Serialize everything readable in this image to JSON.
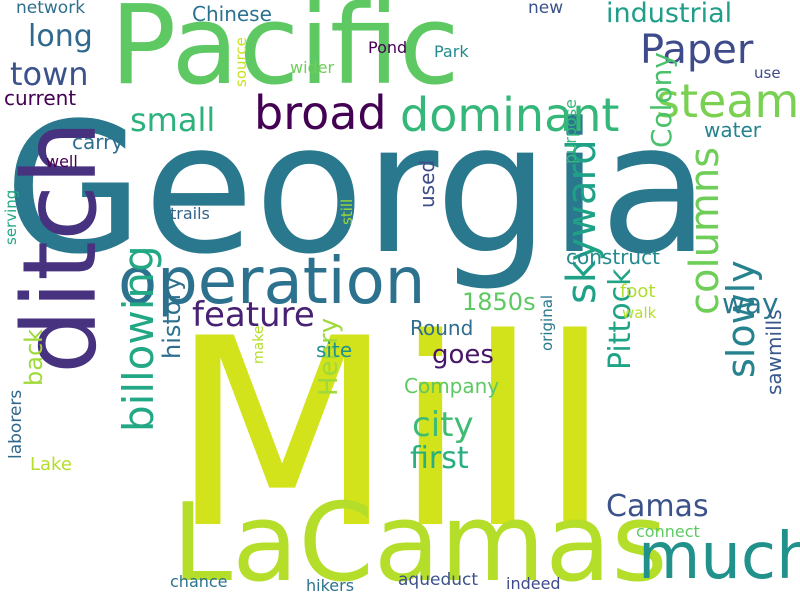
{
  "words": [
    {
      "text": "Georgia",
      "color": "#2a788e"
    },
    {
      "text": "Mill",
      "color": "#d2e21b"
    },
    {
      "text": "Pacific",
      "color": "#5ec962"
    },
    {
      "text": "ditch",
      "color": "#46327e"
    },
    {
      "text": "LaCamas",
      "color": "#b5de2b"
    },
    {
      "text": "operation",
      "color": "#2c728e"
    },
    {
      "text": "much",
      "color": "#21918c"
    },
    {
      "text": "broad",
      "color": "#440154"
    },
    {
      "text": "dominant",
      "color": "#35b779"
    },
    {
      "text": "steam",
      "color": "#7ad151"
    },
    {
      "text": "Paper",
      "color": "#3e4a89"
    },
    {
      "text": "billowing",
      "color": "#22a884"
    },
    {
      "text": "skyward",
      "color": "#1fa187"
    },
    {
      "text": "columns",
      "color": "#6ece58"
    },
    {
      "text": "slowly",
      "color": "#26828e"
    },
    {
      "text": "industrial",
      "color": "#1f9e89"
    },
    {
      "text": "town",
      "color": "#3b528b"
    },
    {
      "text": "long",
      "color": "#31688e"
    },
    {
      "text": "small",
      "color": "#2db27d"
    },
    {
      "text": "feature",
      "color": "#482173"
    },
    {
      "text": "city",
      "color": "#3fbc73"
    },
    {
      "text": "first",
      "color": "#29af7f"
    },
    {
      "text": "Camas",
      "color": "#3b528b"
    },
    {
      "text": "Pittock",
      "color": "#20a486"
    },
    {
      "text": "Henry",
      "color": "#9fda3a"
    },
    {
      "text": "history",
      "color": "#2e6f8e"
    },
    {
      "text": "Colony",
      "color": "#4ac16d"
    },
    {
      "text": "goes",
      "color": "#481668"
    },
    {
      "text": "way",
      "color": "#2a788e"
    },
    {
      "text": "sawmills",
      "color": "#38598c"
    },
    {
      "text": "1850s",
      "color": "#5ec962"
    },
    {
      "text": "back",
      "color": "#a0da39"
    },
    {
      "text": "construct",
      "color": "#23898e"
    },
    {
      "text": "current",
      "color": "#440154"
    },
    {
      "text": "Chinese",
      "color": "#2c728e"
    },
    {
      "text": "carry",
      "color": "#2e6e8e"
    },
    {
      "text": "used",
      "color": "#3e4c8a"
    },
    {
      "text": "water",
      "color": "#25838e"
    },
    {
      "text": "Company",
      "color": "#5ec962"
    },
    {
      "text": "Round",
      "color": "#2f6c8e"
    },
    {
      "text": "site",
      "color": "#21918c"
    },
    {
      "text": "Lake",
      "color": "#b5de2b"
    },
    {
      "text": "foot",
      "color": "#b0dd2f"
    },
    {
      "text": "laborers",
      "color": "#30678d"
    },
    {
      "text": "network",
      "color": "#2e6f8e"
    },
    {
      "text": "new",
      "color": "#3b528b"
    },
    {
      "text": "Pond",
      "color": "#440154"
    },
    {
      "text": "Park",
      "color": "#23898e"
    },
    {
      "text": "wider",
      "color": "#6ece58"
    },
    {
      "text": "use",
      "color": "#3e4a89"
    },
    {
      "text": "trails",
      "color": "#33638d"
    },
    {
      "text": "still",
      "color": "#9fda3a"
    },
    {
      "text": "purpose",
      "color": "#35b779"
    },
    {
      "text": "well",
      "color": "#440154"
    },
    {
      "text": "serving",
      "color": "#22a884"
    },
    {
      "text": "source",
      "color": "#cae11f"
    },
    {
      "text": "walk",
      "color": "#b5de2b"
    },
    {
      "text": "make",
      "color": "#b5de2b"
    },
    {
      "text": "original",
      "color": "#29788e"
    },
    {
      "text": "chance",
      "color": "#2c728e"
    },
    {
      "text": "hikers",
      "color": "#2c728e"
    },
    {
      "text": "aqueduct",
      "color": "#3b528b"
    },
    {
      "text": "indeed",
      "color": "#3e4a89"
    },
    {
      "text": "connect",
      "color": "#5ec962"
    }
  ]
}
